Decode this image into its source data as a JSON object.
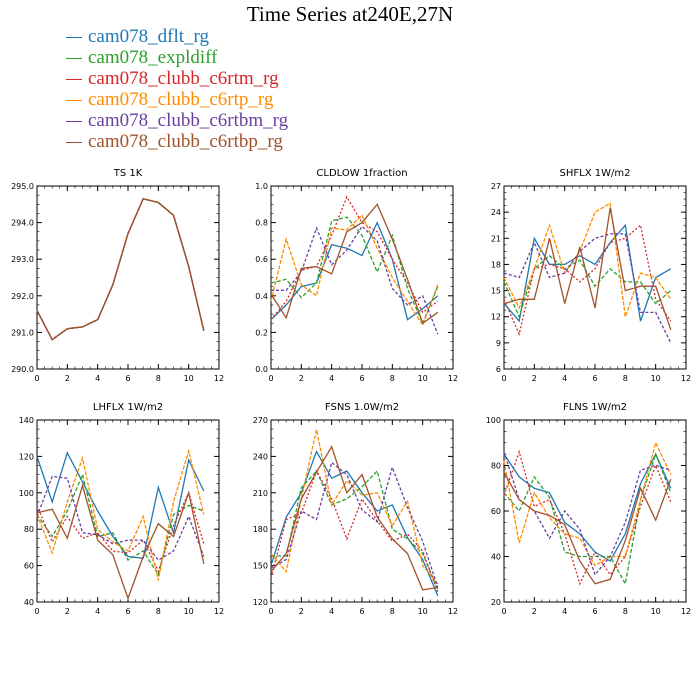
{
  "title": "Time Series at240E,27N",
  "colors": [
    "#1f77b4",
    "#2ca02c",
    "#d62728",
    "#ff8c00",
    "#6a3fa0",
    "#a0522d"
  ],
  "legend": [
    {
      "name": "cam078_dflt_rg",
      "color": "#1f77b4"
    },
    {
      "name": "cam078_expldiff",
      "color": "#2ca02c"
    },
    {
      "name": "cam078_clubb_c6rtm_rg",
      "color": "#d62728"
    },
    {
      "name": "cam078_clubb_c6rtp_rg",
      "color": "#ff8c00"
    },
    {
      "name": "cam078_clubb_c6rtbm_rg",
      "color": "#6a3fa0"
    },
    {
      "name": "cam078_clubb_c6rtbp_rg",
      "color": "#a0522d"
    }
  ],
  "chart_data": [
    {
      "type": "line",
      "title": "TS   1K",
      "x": [
        0,
        1,
        2,
        3,
        4,
        5,
        6,
        7,
        8,
        9,
        10,
        11
      ],
      "xlim": [
        0,
        12
      ],
      "xticks": [
        0,
        2,
        4,
        6,
        8,
        10,
        12
      ],
      "ylim": [
        290,
        295
      ],
      "yticks": [
        290,
        291,
        292,
        293,
        294,
        295
      ],
      "yticklabels": [
        "290.0",
        "291.0",
        "292.0",
        "293.0",
        "294.0",
        "295.0"
      ],
      "series": [
        {
          "values": [
            291.6,
            290.8,
            291.1,
            291.15,
            291.35,
            292.3,
            293.7,
            294.65,
            294.55,
            294.2,
            292.8,
            291.05
          ]
        },
        {
          "values": [
            291.6,
            290.8,
            291.1,
            291.15,
            291.35,
            292.3,
            293.7,
            294.65,
            294.55,
            294.2,
            292.8,
            291.05
          ]
        },
        {
          "values": [
            291.6,
            290.8,
            291.1,
            291.15,
            291.35,
            292.3,
            293.7,
            294.65,
            294.55,
            294.2,
            292.8,
            291.05
          ]
        },
        {
          "values": [
            291.6,
            290.8,
            291.1,
            291.15,
            291.35,
            292.3,
            293.7,
            294.65,
            294.55,
            294.2,
            292.8,
            291.05
          ]
        },
        {
          "values": [
            291.6,
            290.8,
            291.1,
            291.15,
            291.35,
            292.3,
            293.7,
            294.65,
            294.55,
            294.2,
            292.8,
            291.05
          ]
        },
        {
          "values": [
            291.6,
            290.8,
            291.1,
            291.15,
            291.35,
            292.3,
            293.7,
            294.65,
            294.55,
            294.2,
            292.8,
            291.05
          ]
        }
      ]
    },
    {
      "type": "line",
      "title": "CLDLOW   1fraction",
      "x": [
        0,
        1,
        2,
        3,
        4,
        5,
        6,
        7,
        8,
        9,
        10,
        11
      ],
      "xlim": [
        0,
        12
      ],
      "xticks": [
        0,
        2,
        4,
        6,
        8,
        10,
        12
      ],
      "ylim": [
        0,
        1
      ],
      "yticks": [
        0,
        0.2,
        0.4,
        0.6,
        0.8,
        1.0
      ],
      "yticklabels": [
        "0.0",
        "0.2",
        "0.4",
        "0.6",
        "0.8",
        "1.0"
      ],
      "series": [
        {
          "values": [
            0.27,
            0.35,
            0.45,
            0.47,
            0.68,
            0.66,
            0.62,
            0.8,
            0.6,
            0.27,
            0.33,
            0.4
          ]
        },
        {
          "values": [
            0.47,
            0.49,
            0.39,
            0.47,
            0.81,
            0.83,
            0.73,
            0.53,
            0.73,
            0.44,
            0.25,
            0.45
          ]
        },
        {
          "values": [
            0.27,
            0.37,
            0.54,
            0.56,
            0.73,
            0.94,
            0.8,
            0.75,
            0.6,
            0.47,
            0.31,
            0.37
          ]
        },
        {
          "values": [
            0.37,
            0.71,
            0.46,
            0.4,
            0.77,
            0.76,
            0.84,
            0.66,
            0.5,
            0.37,
            0.24,
            0.46
          ]
        },
        {
          "values": [
            0.43,
            0.43,
            0.53,
            0.77,
            0.57,
            0.65,
            0.78,
            0.7,
            0.44,
            0.35,
            0.4,
            0.19
          ]
        },
        {
          "values": [
            0.41,
            0.28,
            0.55,
            0.56,
            0.52,
            0.75,
            0.8,
            0.9,
            0.71,
            0.49,
            0.25,
            0.31
          ]
        }
      ]
    },
    {
      "type": "line",
      "title": "SHFLX   1W/m2",
      "x": [
        0,
        1,
        2,
        3,
        4,
        5,
        6,
        7,
        8,
        9,
        10,
        11
      ],
      "xlim": [
        0,
        12
      ],
      "xticks": [
        0,
        2,
        4,
        6,
        8,
        10,
        12
      ],
      "ylim": [
        6,
        27
      ],
      "yticks": [
        6,
        9,
        12,
        15,
        18,
        21,
        24,
        27
      ],
      "yticklabels": [
        "6",
        "9",
        "12",
        "15",
        "18",
        "21",
        "24",
        "27"
      ],
      "series": [
        {
          "values": [
            13.5,
            11.5,
            21.0,
            18.0,
            18.0,
            19.0,
            18.0,
            20.5,
            22.5,
            11.5,
            16.5,
            17.5
          ]
        },
        {
          "values": [
            16.0,
            12.0,
            17.5,
            19.0,
            17.5,
            18.5,
            15.5,
            17.5,
            16.0,
            16.0,
            13.5,
            15.0
          ]
        },
        {
          "values": [
            14.0,
            10.0,
            17.5,
            18.0,
            17.5,
            16.0,
            17.5,
            20.5,
            21.0,
            22.5,
            14.0,
            11.5
          ]
        },
        {
          "values": [
            16.5,
            13.0,
            17.5,
            22.5,
            17.0,
            19.5,
            24.0,
            25.0,
            12.0,
            17.0,
            16.5,
            14.0
          ]
        },
        {
          "values": [
            17.0,
            16.5,
            20.5,
            16.5,
            17.0,
            19.5,
            21.0,
            21.5,
            21.5,
            12.5,
            12.5,
            9.0
          ]
        },
        {
          "values": [
            13.5,
            14.0,
            14.0,
            21.0,
            13.5,
            20.0,
            13.0,
            24.5,
            15.0,
            15.5,
            15.5,
            10.5
          ]
        }
      ]
    },
    {
      "type": "line",
      "title": "LHFLX   1W/m2",
      "x": [
        0,
        1,
        2,
        3,
        4,
        5,
        6,
        7,
        8,
        9,
        10,
        11
      ],
      "xlim": [
        0,
        12
      ],
      "xticks": [
        0,
        2,
        4,
        6,
        8,
        10,
        12
      ],
      "ylim": [
        40,
        140
      ],
      "yticks": [
        40,
        60,
        80,
        100,
        120,
        140
      ],
      "yticklabels": [
        "40",
        "60",
        "80",
        "100",
        "120",
        "140"
      ],
      "series": [
        {
          "values": [
            120,
            95,
            122,
            106,
            90,
            76,
            65,
            64,
            103,
            78,
            118,
            101
          ]
        },
        {
          "values": [
            88,
            76,
            90,
            110,
            76,
            78,
            63,
            68,
            55,
            88,
            93,
            90
          ]
        },
        {
          "values": [
            93,
            73,
            87,
            75,
            78,
            68,
            67,
            74,
            57,
            82,
            100,
            72
          ]
        },
        {
          "values": [
            88,
            67,
            95,
            119,
            80,
            73,
            68,
            87,
            52,
            95,
            123,
            88
          ]
        },
        {
          "values": [
            87,
            109,
            108,
            78,
            77,
            72,
            74,
            74,
            63,
            68,
            87,
            65
          ]
        },
        {
          "values": [
            89,
            91,
            75,
            104,
            74,
            66,
            42,
            65,
            83,
            76,
            100,
            61
          ]
        }
      ]
    },
    {
      "type": "line",
      "title": "FSNS   1.0W/m2",
      "x": [
        0,
        1,
        2,
        3,
        4,
        5,
        6,
        7,
        8,
        9,
        10,
        11
      ],
      "xlim": [
        0,
        12
      ],
      "xticks": [
        0,
        2,
        4,
        6,
        8,
        10,
        12
      ],
      "ylim": [
        120,
        270
      ],
      "yticks": [
        120,
        150,
        180,
        210,
        240,
        270
      ],
      "yticklabels": [
        "120",
        "150",
        "180",
        "210",
        "240",
        "270"
      ],
      "series": [
        {
          "values": [
            150,
            190,
            210,
            244,
            222,
            228,
            210,
            195,
            200,
            173,
            155,
            125
          ]
        },
        {
          "values": [
            158,
            158,
            214,
            228,
            200,
            205,
            215,
            228,
            180,
            172,
            160,
            130
          ]
        },
        {
          "values": [
            140,
            188,
            193,
            228,
            205,
            172,
            205,
            187,
            170,
            176,
            162,
            128
          ]
        },
        {
          "values": [
            160,
            145,
            205,
            262,
            200,
            220,
            208,
            210,
            183,
            203,
            150,
            135
          ]
        },
        {
          "values": [
            148,
            155,
            195,
            188,
            235,
            225,
            196,
            186,
            231,
            198,
            170,
            132
          ]
        },
        {
          "values": [
            145,
            160,
            205,
            227,
            248,
            210,
            225,
            190,
            172,
            160,
            130,
            132
          ]
        }
      ]
    },
    {
      "type": "line",
      "title": "FLNS   1W/m2",
      "x": [
        0,
        1,
        2,
        3,
        4,
        5,
        6,
        7,
        8,
        9,
        10,
        11
      ],
      "xlim": [
        0,
        12
      ],
      "xticks": [
        0,
        2,
        4,
        6,
        8,
        10,
        12
      ],
      "ylim": [
        20,
        100
      ],
      "yticks": [
        20,
        40,
        60,
        80,
        100
      ],
      "yticklabels": [
        "20",
        "40",
        "60",
        "80",
        "100"
      ],
      "series": [
        {
          "values": [
            85,
            75,
            70,
            68,
            55,
            50,
            42,
            38,
            50,
            72,
            85,
            70
          ]
        },
        {
          "values": [
            68,
            60,
            75,
            66,
            42,
            40,
            40,
            40,
            28,
            65,
            85,
            68
          ]
        },
        {
          "values": [
            67,
            86,
            62,
            65,
            50,
            28,
            42,
            32,
            40,
            62,
            80,
            64
          ]
        },
        {
          "values": [
            82,
            46,
            68,
            57,
            50,
            48,
            36,
            40,
            40,
            65,
            90,
            76
          ]
        },
        {
          "values": [
            86,
            65,
            60,
            48,
            60,
            52,
            32,
            40,
            55,
            78,
            80,
            78
          ]
        },
        {
          "values": [
            77,
            65,
            60,
            58,
            54,
            38,
            28,
            30,
            47,
            70,
            56,
            74
          ]
        }
      ]
    }
  ]
}
